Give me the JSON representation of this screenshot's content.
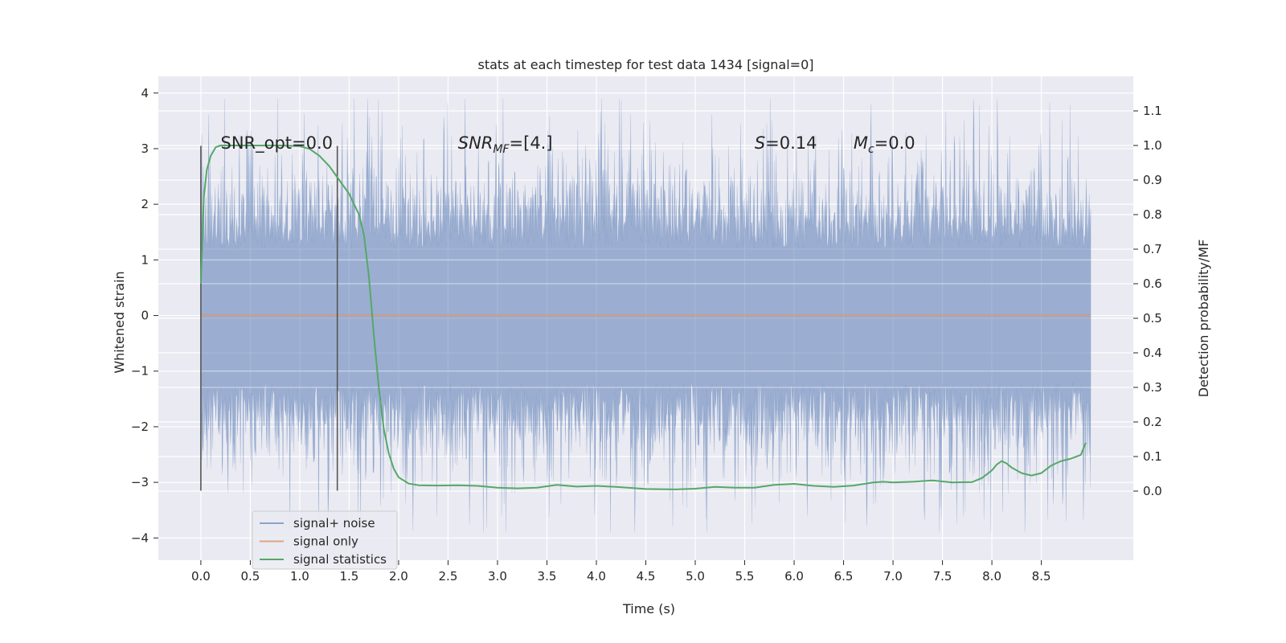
{
  "chart_data": {
    "type": "line",
    "title": "stats at each timestep for test data 1434 [signal=0]",
    "xlabel": "Time (s)",
    "ylabel": "Whitened strain",
    "ylabel_right": "Detection probability/MF",
    "xlim": [
      -0.43,
      9.43
    ],
    "ylim": [
      -4.4,
      4.3
    ],
    "ylim_right": [
      -0.2,
      1.2
    ],
    "x_ticks": [
      "0.0",
      "0.5",
      "1.0",
      "1.5",
      "2.0",
      "2.5",
      "3.0",
      "3.5",
      "4.0",
      "4.5",
      "5.0",
      "5.5",
      "6.0",
      "6.5",
      "7.0",
      "7.5",
      "8.0",
      "8.5"
    ],
    "y_ticks": [
      "4",
      "3",
      "2",
      "1",
      "0",
      "−1",
      "−2",
      "−3",
      "−4"
    ],
    "y_right_ticks": [
      "1.1",
      "1.0",
      "0.9",
      "0.8",
      "0.7",
      "0.6",
      "0.5",
      "0.4",
      "0.3",
      "0.2",
      "0.1",
      "0.0"
    ],
    "grid": true,
    "legend_position": "lower-left",
    "colors": {
      "background": "#eaeaf2",
      "noise": "#4c72b0",
      "signal": "#dd8452",
      "stats": "#55a868",
      "marker": "#555555"
    },
    "noise": {
      "duration_s": 9.0,
      "sample_count": 1800,
      "seed": 1434,
      "core_amplitude": 1.2,
      "peak_amplitude": 3.9
    },
    "markers_x": [
      0.0,
      1.38
    ],
    "marker_range": [
      -3.15,
      3.05
    ],
    "annotations": [
      {
        "x": 0.2,
        "y": 3.0,
        "pre": "SNR_opt=0.0",
        "italic": "",
        "sub": "",
        "post": ""
      },
      {
        "x": 2.6,
        "y": 3.0,
        "pre": "",
        "italic": "SNR",
        "sub": "MF",
        "post": "=[4.]"
      },
      {
        "x": 5.6,
        "y": 3.0,
        "pre": "",
        "italic": "S",
        "sub": "",
        "post": "=0.14"
      },
      {
        "x": 6.6,
        "y": 3.0,
        "pre": "",
        "italic": "M",
        "sub": "c",
        "post": "=0.0"
      }
    ],
    "series": [
      {
        "name": "signal+ noise",
        "type": "filled-noise"
      },
      {
        "name": "signal only",
        "x": [
          0.0,
          9.0
        ],
        "values": [
          0.0,
          0.0
        ]
      },
      {
        "name": "signal statistics",
        "axis": "right",
        "x": [
          0.0,
          0.03,
          0.06,
          0.1,
          0.15,
          0.2,
          0.3,
          0.5,
          0.8,
          1.0,
          1.1,
          1.2,
          1.3,
          1.4,
          1.5,
          1.6,
          1.65,
          1.7,
          1.75,
          1.8,
          1.85,
          1.9,
          1.95,
          2.0,
          2.1,
          2.2,
          2.4,
          2.6,
          2.8,
          3.0,
          3.2,
          3.4,
          3.6,
          3.8,
          4.0,
          4.2,
          4.5,
          4.8,
          5.0,
          5.2,
          5.4,
          5.6,
          5.8,
          6.0,
          6.2,
          6.4,
          6.6,
          6.8,
          6.9,
          7.0,
          7.2,
          7.4,
          7.5,
          7.6,
          7.8,
          7.9,
          8.0,
          8.05,
          8.1,
          8.15,
          8.2,
          8.3,
          8.4,
          8.5,
          8.6,
          8.7,
          8.8,
          8.9,
          8.95
        ],
        "values": [
          0.6,
          0.85,
          0.93,
          0.97,
          0.995,
          1.0,
          1.0,
          1.0,
          1.0,
          0.998,
          0.99,
          0.97,
          0.94,
          0.9,
          0.86,
          0.8,
          0.74,
          0.62,
          0.45,
          0.3,
          0.18,
          0.11,
          0.065,
          0.04,
          0.022,
          0.017,
          0.016,
          0.017,
          0.015,
          0.01,
          0.008,
          0.01,
          0.018,
          0.013,
          0.015,
          0.012,
          0.006,
          0.005,
          0.007,
          0.012,
          0.01,
          0.01,
          0.018,
          0.021,
          0.015,
          0.012,
          0.016,
          0.025,
          0.027,
          0.025,
          0.027,
          0.031,
          0.028,
          0.025,
          0.026,
          0.038,
          0.06,
          0.077,
          0.087,
          0.08,
          0.068,
          0.052,
          0.045,
          0.052,
          0.074,
          0.087,
          0.094,
          0.105,
          0.14
        ]
      }
    ]
  }
}
